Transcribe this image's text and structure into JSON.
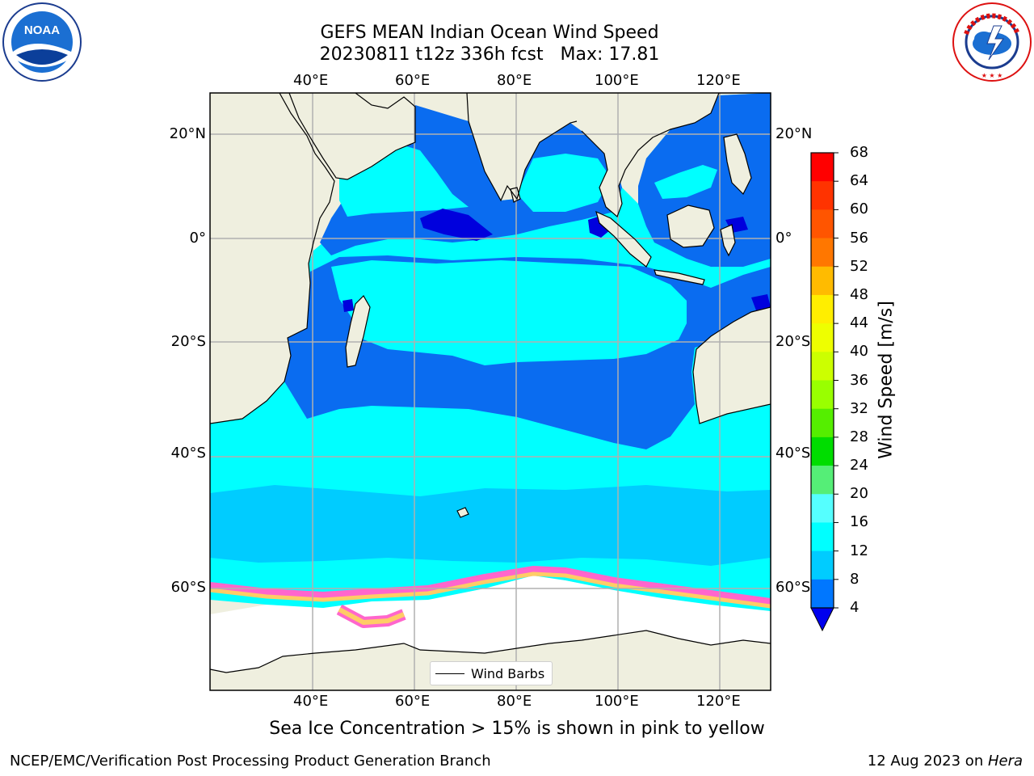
{
  "title": {
    "line1": "GEFS MEAN Indian Ocean Wind Speed",
    "line2": "20230811 t12z 336h fcst   Max: 17.81"
  },
  "caption": "Sea Ice Concentration > 15% is shown in pink to yellow",
  "footer": {
    "left": "NCEP/EMC/Verification Post Processing Product Generation Branch",
    "date": "12 Aug 2023 on ",
    "machine": "Hera"
  },
  "axes": {
    "lon_ticks": [
      "40°E",
      "60°E",
      "80°E",
      "100°E",
      "120°E"
    ],
    "lat_ticks_left": [
      "20°N",
      "0°",
      "20°S",
      "40°S",
      "60°S"
    ],
    "lat_ticks_right": [
      "20°N",
      "0°",
      "20°S",
      "40°S",
      "60°S"
    ]
  },
  "legend": {
    "label": "Wind Barbs"
  },
  "colorbar": {
    "label": "Wind Speed [m/s]",
    "ticks": [
      "68",
      "64",
      "60",
      "56",
      "52",
      "48",
      "44",
      "40",
      "36",
      "32",
      "28",
      "24",
      "20",
      "16",
      "12",
      "8",
      "4"
    ],
    "colors": [
      "#ff0000",
      "#ff3300",
      "#ff5500",
      "#ff7700",
      "#ff9900",
      "#ffbb00",
      "#ffee00",
      "#eeff00",
      "#ccff00",
      "#99ff00",
      "#55ee00",
      "#00dd00",
      "#55ee77",
      "#99ffee",
      "#55ffff",
      "#00ffff",
      "#00ccff",
      "#0077ff"
    ],
    "under_color": "#0000ee"
  },
  "map_colors": {
    "land": "#efefdf",
    "ocean_light": "#00ffff",
    "ocean_mid": "#00ccff",
    "ocean_strong": "#0a6cf0",
    "ocean_max": "#0000dd",
    "ice_edge": "#ff66cc",
    "ice_core": "#ffcc66"
  },
  "logos": {
    "left_icon": "noaa-logo-icon",
    "right_icon": "nws-logo-icon",
    "noaa_text": "NOAA",
    "nws_text": "NATIONAL WEATHER SERVICE"
  }
}
